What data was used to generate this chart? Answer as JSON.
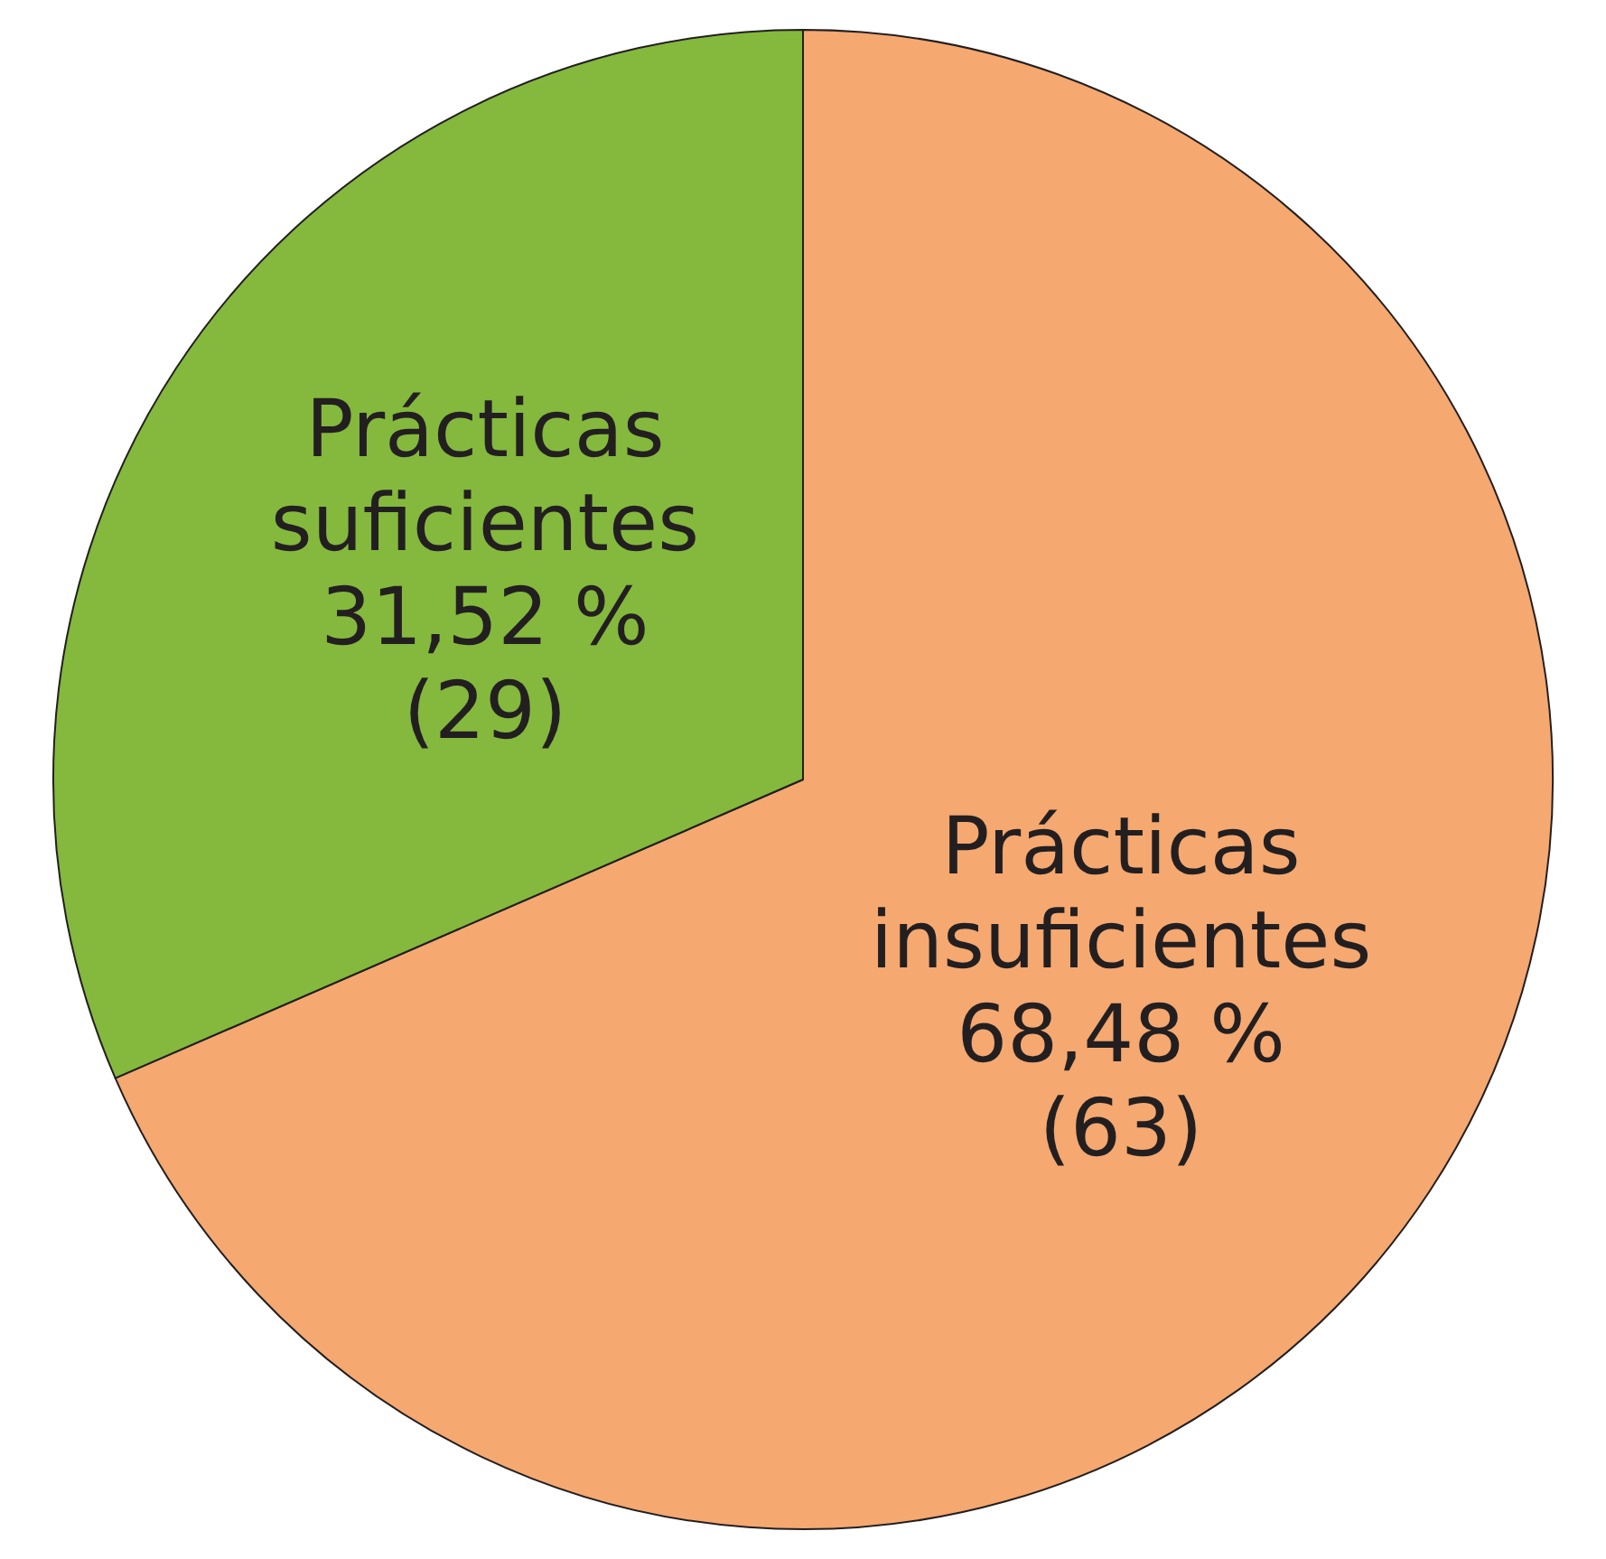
{
  "chart_data": {
    "type": "pie",
    "categories": [
      "Prácticas\ninsuficientes",
      "Prácticas\nsuficientes"
    ],
    "values": [
      63,
      29
    ],
    "value_labels": [
      "68,48 %\n(63)",
      "31,52 %\n(29)"
    ],
    "colors": [
      "#f5a870",
      "#84b93d"
    ],
    "legend": false
  }
}
